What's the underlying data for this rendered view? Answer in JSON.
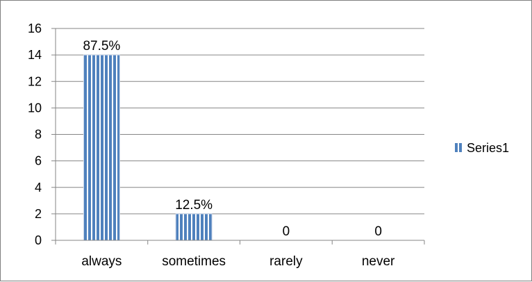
{
  "chart_data": {
    "type": "bar",
    "categories": [
      "always",
      "sometimes",
      "rarely",
      "never"
    ],
    "series": [
      {
        "name": "Series1",
        "values": [
          14,
          2,
          0,
          0
        ],
        "color": "#4f81bd"
      }
    ],
    "data_labels": [
      "87.5%",
      "12.5%",
      "0",
      "0"
    ],
    "ylim": [
      0,
      16
    ],
    "yticks": [
      0,
      2,
      4,
      6,
      8,
      10,
      12,
      14,
      16
    ],
    "grid": true,
    "legend": "right",
    "fill_pattern": "vertical-stripes"
  }
}
